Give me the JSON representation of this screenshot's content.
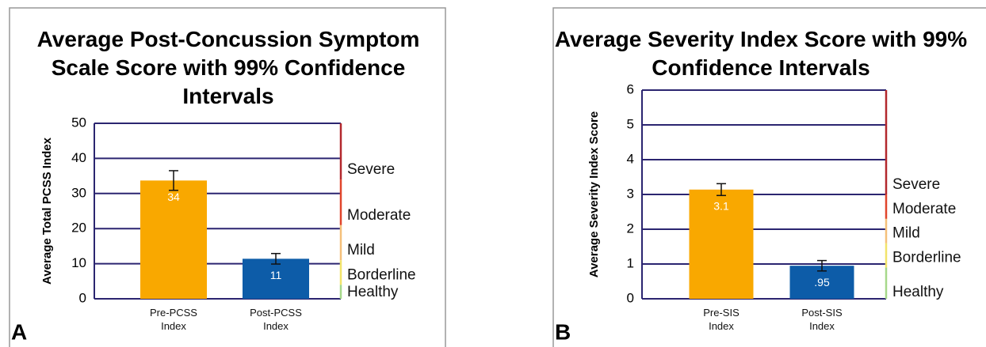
{
  "chart_data": [
    {
      "type": "bar",
      "title": "Average Post-Concussion Symptom Scale Score with 99% Confidence Intervals",
      "ylabel": "Average Total PCSS Index",
      "panel_label": "A",
      "categories": [
        "Pre-PCSS Index",
        "Post-PCSS Index"
      ],
      "values": [
        33.7,
        11.4
      ],
      "value_labels": [
        "34",
        "11"
      ],
      "error": [
        2.8,
        1.5
      ],
      "colors": [
        "#f9a800",
        "#0d5ca8"
      ],
      "ylim": [
        0,
        50
      ],
      "yticks": [
        0,
        10,
        20,
        30,
        40,
        50
      ],
      "grid": true,
      "ranges": [
        {
          "label": "Healthy",
          "color": "#a6d88a",
          "from": 0,
          "to": 4
        },
        {
          "label": "Borderline",
          "color": "#f2e46a",
          "from": 4,
          "to": 11
        },
        {
          "label": "Mild",
          "color": "#f5c07a",
          "from": 11,
          "to": 21
        },
        {
          "label": "Moderate",
          "color": "#e0452b",
          "from": 21,
          "to": 34
        },
        {
          "label": "Severe",
          "color": "#b3282d",
          "from": 34,
          "to": 50
        }
      ]
    },
    {
      "type": "bar",
      "title": "Average Severity Index Score with 99% Confidence Intervals",
      "ylabel": "Average Severity Index Score",
      "panel_label": "B",
      "categories": [
        "Pre-SIS Index",
        "Post-SIS Index"
      ],
      "values": [
        3.14,
        0.95
      ],
      "value_labels": [
        "3.1",
        ".95"
      ],
      "error": [
        0.17,
        0.15
      ],
      "colors": [
        "#f9a800",
        "#0d5ca8"
      ],
      "ylim": [
        0,
        6
      ],
      "yticks": [
        0,
        1,
        2,
        3,
        4,
        5,
        6
      ],
      "grid": true,
      "ranges": [
        {
          "label": "Healthy",
          "color": "#a6d88a",
          "from": 0,
          "to": 0.9
        },
        {
          "label": "Borderline",
          "color": "#f2e46a",
          "from": 0.9,
          "to": 1.6
        },
        {
          "label": "Mild",
          "color": "#f5c07a",
          "from": 1.6,
          "to": 2.3
        },
        {
          "label": "Moderate",
          "color": "#e0452b",
          "from": 2.3,
          "to": 3.0
        },
        {
          "label": "Severe",
          "color": "#b3282d",
          "from": 3.0,
          "to": 6
        }
      ]
    }
  ]
}
